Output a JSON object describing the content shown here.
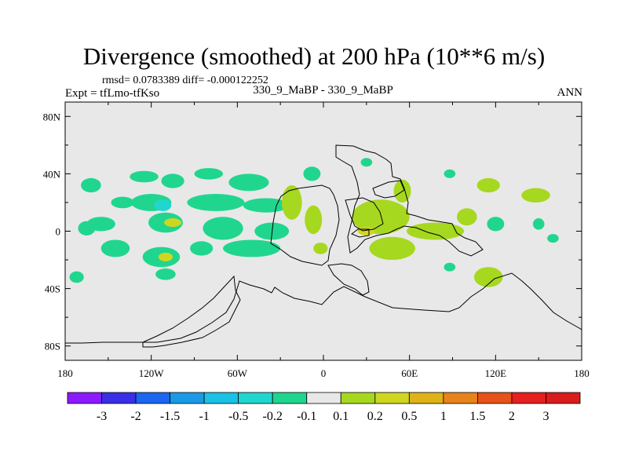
{
  "title": "Divergence (smoothed) at 200 hPa (10**6 m/s)",
  "stats": {
    "rmsd_label": "rmsd= 0.0783389 diff= -0.000122252"
  },
  "experiment": {
    "label": "Expt = tfLmo-tfKso"
  },
  "case_label": "330_9_MaBP - 330_9_MaBP",
  "season": "ANN",
  "chart_data": {
    "type": "heatmap",
    "title": "Divergence (smoothed) at 200 hPa (10**6 m/s)",
    "xlabel": "",
    "ylabel": "",
    "xlim": [
      -180,
      180
    ],
    "ylim": [
      -90,
      90
    ],
    "x_ticks": [
      -180,
      -120,
      -60,
      0,
      60,
      120,
      180
    ],
    "x_tick_labels": [
      "180",
      "120W",
      "60W",
      "0",
      "60E",
      "120E",
      "180"
    ],
    "y_ticks": [
      80,
      40,
      0,
      -40,
      -80
    ],
    "y_tick_labels": [
      "80N",
      "40N",
      "0",
      "40S",
      "80S"
    ],
    "levels": [
      "-3",
      "-2",
      "-1.5",
      "-1",
      "-0.5",
      "-0.2",
      "-0.1",
      "0.1",
      "0.2",
      "0.5",
      "1",
      "1.5",
      "2",
      "3"
    ],
    "colors": [
      "#8c1aff",
      "#3a2fe6",
      "#1a66f0",
      "#1a9ae6",
      "#1ac2e6",
      "#22d6d0",
      "#20d68e",
      "#e8e8e8",
      "#a6d81f",
      "#cfd620",
      "#e0b21a",
      "#e6831a",
      "#e6521a",
      "#e61f1f",
      "#d91c1c"
    ],
    "background_color": "#e8e8e8",
    "cells": [
      {
        "lon": -162,
        "lat": 32,
        "lon_half": 7,
        "lat_half": 5,
        "level": 6
      },
      {
        "lon": -125,
        "lat": 38,
        "lon_half": 10,
        "lat_half": 4,
        "level": 6
      },
      {
        "lon": -105,
        "lat": 35,
        "lon_half": 8,
        "lat_half": 5,
        "level": 6
      },
      {
        "lon": -80,
        "lat": 40,
        "lon_half": 10,
        "lat_half": 4,
        "level": 6
      },
      {
        "lon": -52,
        "lat": 34,
        "lon_half": 14,
        "lat_half": 6,
        "level": 6
      },
      {
        "lon": -8,
        "lat": 40,
        "lon_half": 6,
        "lat_half": 5,
        "level": 6
      },
      {
        "lon": -165,
        "lat": 2,
        "lon_half": 6,
        "lat_half": 5,
        "level": 6
      },
      {
        "lon": -140,
        "lat": 20,
        "lon_half": 8,
        "lat_half": 4,
        "level": 6
      },
      {
        "lon": -120,
        "lat": 20,
        "lon_half": 14,
        "lat_half": 6,
        "level": 6
      },
      {
        "lon": -112,
        "lat": 18,
        "lon_half": 6,
        "lat_half": 4,
        "level": 5
      },
      {
        "lon": -75,
        "lat": 20,
        "lon_half": 20,
        "lat_half": 6,
        "level": 6
      },
      {
        "lon": -40,
        "lat": 18,
        "lon_half": 16,
        "lat_half": 5,
        "level": 6
      },
      {
        "lon": -155,
        "lat": 5,
        "lon_half": 10,
        "lat_half": 5,
        "level": 6
      },
      {
        "lon": -110,
        "lat": 6,
        "lon_half": 12,
        "lat_half": 7,
        "level": 6
      },
      {
        "lon": -105,
        "lat": 6,
        "lon_half": 6,
        "lat_half": 3,
        "level": 9
      },
      {
        "lon": -70,
        "lat": 2,
        "lon_half": 14,
        "lat_half": 8,
        "level": 6
      },
      {
        "lon": -36,
        "lat": 0,
        "lon_half": 12,
        "lat_half": 6,
        "level": 6
      },
      {
        "lon": -145,
        "lat": -12,
        "lon_half": 10,
        "lat_half": 6,
        "level": 6
      },
      {
        "lon": -113,
        "lat": -18,
        "lon_half": 13,
        "lat_half": 7,
        "level": 6
      },
      {
        "lon": -110,
        "lat": -18,
        "lon_half": 5,
        "lat_half": 3,
        "level": 9
      },
      {
        "lon": -85,
        "lat": -12,
        "lon_half": 8,
        "lat_half": 5,
        "level": 6
      },
      {
        "lon": -50,
        "lat": -12,
        "lon_half": 20,
        "lat_half": 6,
        "level": 6
      },
      {
        "lon": -172,
        "lat": -32,
        "lon_half": 5,
        "lat_half": 4,
        "level": 6
      },
      {
        "lon": -110,
        "lat": -30,
        "lon_half": 7,
        "lat_half": 4,
        "level": 6
      },
      {
        "lon": -22,
        "lat": 20,
        "lon_half": 7,
        "lat_half": 12,
        "level": 8
      },
      {
        "lon": -7,
        "lat": 8,
        "lon_half": 6,
        "lat_half": 10,
        "level": 8
      },
      {
        "lon": -2,
        "lat": -12,
        "lon_half": 5,
        "lat_half": 4,
        "level": 8
      },
      {
        "lon": 40,
        "lat": 10,
        "lon_half": 20,
        "lat_half": 12,
        "level": 8
      },
      {
        "lon": 30,
        "lat": 0,
        "lon_half": 6,
        "lat_half": 3,
        "level": 9
      },
      {
        "lon": 55,
        "lat": 28,
        "lon_half": 6,
        "lat_half": 8,
        "level": 8
      },
      {
        "lon": 48,
        "lat": -12,
        "lon_half": 16,
        "lat_half": 8,
        "level": 8
      },
      {
        "lon": 78,
        "lat": 0,
        "lon_half": 20,
        "lat_half": 6,
        "level": 8
      },
      {
        "lon": 100,
        "lat": 10,
        "lon_half": 7,
        "lat_half": 6,
        "level": 8
      },
      {
        "lon": 115,
        "lat": 32,
        "lon_half": 8,
        "lat_half": 5,
        "level": 8
      },
      {
        "lon": 148,
        "lat": 25,
        "lon_half": 10,
        "lat_half": 5,
        "level": 8
      },
      {
        "lon": 115,
        "lat": -32,
        "lon_half": 10,
        "lat_half": 7,
        "level": 8
      },
      {
        "lon": 30,
        "lat": 48,
        "lon_half": 4,
        "lat_half": 3,
        "level": 6
      },
      {
        "lon": 120,
        "lat": 5,
        "lon_half": 6,
        "lat_half": 5,
        "level": 6
      },
      {
        "lon": 150,
        "lat": 5,
        "lon_half": 4,
        "lat_half": 4,
        "level": 6
      },
      {
        "lon": 160,
        "lat": -5,
        "lon_half": 4,
        "lat_half": 3,
        "level": 6
      },
      {
        "lon": 88,
        "lat": -25,
        "lon_half": 4,
        "lat_half": 3,
        "level": 6
      },
      {
        "lon": 88,
        "lat": 40,
        "lon_half": 4,
        "lat_half": 3,
        "level": 6
      }
    ]
  }
}
